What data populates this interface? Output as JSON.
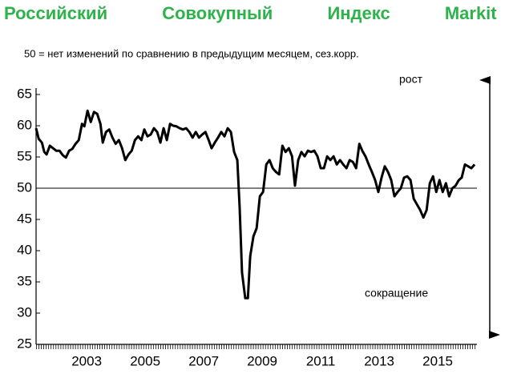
{
  "chart_data": {
    "type": "line",
    "title": "Российский Совокупный Индекс Markit",
    "subtitle": "50 = нет изменений по сравнению в предыдущим месяцем, сез.корр.",
    "annotations": [
      "рост",
      "сокращение"
    ],
    "color": "#000000",
    "reference_line": 50,
    "x": [
      2001.77,
      2001.86,
      2001.97,
      2002.05,
      2002.13,
      2002.24,
      2002.35,
      2002.46,
      2002.57,
      2002.68,
      2002.79,
      2002.9,
      2003.01,
      2003.12,
      2003.23,
      2003.34,
      2003.42,
      2003.53,
      2003.64,
      2003.75,
      2003.86,
      2003.97,
      2004.05,
      2004.16,
      2004.27,
      2004.38,
      2004.49,
      2004.6,
      2004.71,
      2004.82,
      2004.93,
      2005.04,
      2005.15,
      2005.26,
      2005.37,
      2005.47,
      2005.58,
      2005.69,
      2005.8,
      2005.91,
      2006.02,
      2006.13,
      2006.24,
      2006.35,
      2006.46,
      2006.57,
      2006.68,
      2006.79,
      2006.9,
      2007.01,
      2007.12,
      2007.23,
      2007.34,
      2007.45,
      2007.56,
      2007.67,
      2007.77,
      2007.88,
      2007.99,
      2008.1,
      2008.21,
      2008.32,
      2008.43,
      2008.54,
      2008.65,
      2008.73,
      2008.81,
      2008.92,
      2009.01,
      2009.09,
      2009.2,
      2009.31,
      2009.42,
      2009.53,
      2009.64,
      2009.75,
      2009.86,
      2009.97,
      2010.08,
      2010.19,
      2010.3,
      2010.41,
      2010.52,
      2010.62,
      2010.73,
      2010.84,
      2010.95,
      2011.06,
      2011.17,
      2011.28,
      2011.39,
      2011.5,
      2011.61,
      2011.72,
      2011.83,
      2011.94,
      2012.05,
      2012.16,
      2012.27,
      2012.38,
      2012.49,
      2012.6,
      2012.71,
      2012.82,
      2012.92,
      2013.03,
      2013.14,
      2013.25,
      2013.36,
      2013.47,
      2013.58,
      2013.69,
      2013.8,
      2013.91,
      2014.02,
      2014.13,
      2014.24,
      2014.35,
      2014.46,
      2014.57,
      2014.68,
      2014.79,
      2014.9,
      2015.01,
      2015.12,
      2015.23,
      2015.34,
      2015.45,
      2015.56,
      2015.67,
      2015.78,
      2015.89,
      2016.0,
      2016.11,
      2016.22,
      2016.32,
      2016.43,
      2016.54,
      2016.65,
      2016.76
    ],
    "values": [
      59.6,
      57.9,
      57.3,
      55.8,
      55.4,
      56.8,
      56.4,
      56.0,
      56.0,
      55.3,
      54.9,
      56.0,
      56.3,
      57.1,
      57.7,
      60.3,
      59.9,
      62.4,
      60.6,
      62.2,
      61.9,
      60.3,
      57.3,
      59.0,
      59.4,
      58.1,
      57.1,
      57.7,
      56.4,
      54.5,
      55.4,
      56.0,
      57.7,
      58.3,
      57.7,
      59.4,
      58.3,
      58.6,
      59.6,
      59.0,
      57.3,
      59.6,
      57.7,
      60.3,
      60.0,
      59.9,
      59.6,
      59.4,
      59.6,
      59.0,
      58.1,
      59.0,
      58.1,
      58.6,
      59.0,
      57.7,
      56.4,
      57.3,
      58.1,
      59.0,
      58.3,
      59.6,
      59.0,
      55.8,
      54.5,
      46.8,
      36.5,
      32.4,
      32.4,
      39.1,
      42.3,
      43.6,
      48.7,
      49.4,
      53.8,
      54.5,
      53.2,
      52.6,
      52.2,
      56.8,
      55.8,
      56.4,
      55.1,
      50.4,
      54.5,
      55.8,
      55.1,
      56.0,
      55.8,
      56.0,
      55.1,
      53.2,
      53.2,
      55.1,
      54.5,
      55.1,
      53.8,
      54.5,
      53.8,
      53.2,
      54.5,
      54.2,
      53.2,
      57.1,
      56.0,
      55.1,
      53.8,
      52.6,
      51.3,
      49.4,
      51.7,
      53.5,
      52.6,
      51.3,
      48.7,
      49.4,
      50.0,
      51.7,
      51.9,
      51.3,
      48.3,
      47.4,
      46.5,
      45.3,
      46.5,
      50.8,
      51.9,
      49.4,
      51.3,
      49.4,
      50.8,
      48.7,
      50.0,
      50.4,
      51.3,
      51.7,
      53.8,
      53.5,
      53.2,
      53.8
    ],
    "xlim": [
      2001.77,
      2016.84
    ],
    "xticks": [
      {
        "value": 2003.5,
        "label": "2003"
      },
      {
        "value": 2005.5,
        "label": "2005"
      },
      {
        "value": 2007.5,
        "label": "2007"
      },
      {
        "value": 2009.5,
        "label": "2009"
      },
      {
        "value": 2011.5,
        "label": "2011"
      },
      {
        "value": 2013.5,
        "label": "2013"
      },
      {
        "value": 2015.5,
        "label": "2015"
      }
    ],
    "ylim": [
      25,
      65
    ],
    "yticks": [
      25,
      30,
      35,
      40,
      45,
      50,
      55,
      60,
      65
    ]
  }
}
